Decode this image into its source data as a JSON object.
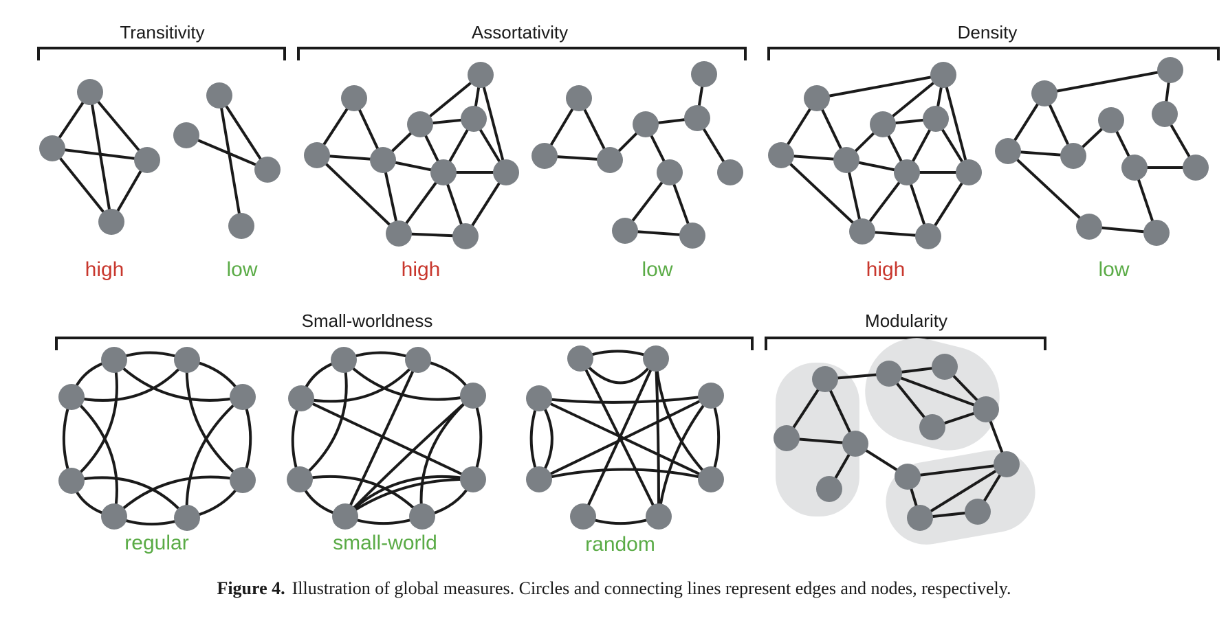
{
  "colors": {
    "high": "#c8372d",
    "low": "#5aab46",
    "node": "#7b8085",
    "edge": "#1a1a1a",
    "module": "#e2e3e4"
  },
  "panels": {
    "transitivity": {
      "title": "Transitivity",
      "label_a": "high",
      "label_b": "low"
    },
    "assortativity": {
      "title": "Assortativity",
      "label_a": "high",
      "label_b": "low"
    },
    "density": {
      "title": "Density",
      "label_a": "high",
      "label_b": "low"
    },
    "small_worldness": {
      "title": "Small-worldness",
      "label_a": "regular",
      "label_b": "small-world",
      "label_c": "random"
    },
    "modularity": {
      "title": "Modularity"
    }
  },
  "caption": {
    "label": "Figure 4.",
    "text": "Illustration of global measures. Circles and connecting lines represent edges and nodes, respectively."
  }
}
